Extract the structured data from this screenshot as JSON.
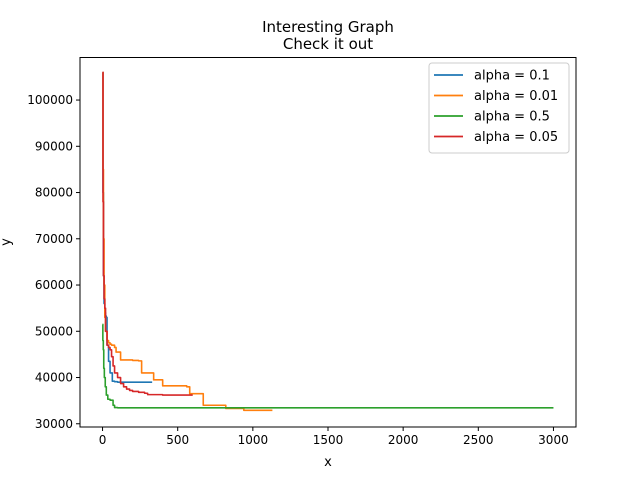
{
  "chart_data": {
    "type": "line",
    "title": "Interesting Graph",
    "subtitle": "Check it out",
    "xlabel": "x",
    "ylabel": "y",
    "xlim": [
      -150,
      3150
    ],
    "ylim": [
      29300,
      109200
    ],
    "xticks": [
      0,
      500,
      1000,
      1500,
      2000,
      2500,
      3000
    ],
    "yticks": [
      30000,
      40000,
      50000,
      60000,
      70000,
      80000,
      90000,
      100000
    ],
    "grid": false,
    "legend_position": "top-right",
    "series": [
      {
        "name": "alpha = 0.1",
        "color": "#1f77b4",
        "x": [
          0,
          3,
          6,
          10,
          15,
          20,
          25,
          30,
          40,
          45,
          50,
          60,
          65,
          80,
          100,
          150,
          200,
          250,
          300,
          330
        ],
        "y": [
          106000,
          80000,
          62000,
          56000,
          54000,
          53300,
          53000,
          47000,
          43500,
          43500,
          41000,
          41000,
          39200,
          39100,
          39000,
          39000,
          39000,
          39000,
          39000,
          39000
        ]
      },
      {
        "name": "alpha = 0.01",
        "color": "#ff7f0e",
        "x": [
          0,
          3,
          6,
          10,
          15,
          20,
          30,
          40,
          50,
          60,
          80,
          90,
          100,
          120,
          140,
          200,
          240,
          260,
          300,
          340,
          400,
          500,
          560,
          580,
          600,
          660,
          670,
          700,
          800,
          820,
          900,
          940,
          1000,
          1100,
          1130
        ],
        "y": [
          106000,
          85000,
          70000,
          60000,
          53000,
          50000,
          48000,
          47500,
          47200,
          47000,
          46500,
          45500,
          45500,
          43800,
          43800,
          43700,
          43600,
          41000,
          41000,
          39500,
          38200,
          38200,
          38000,
          36500,
          36500,
          36500,
          34000,
          34000,
          34000,
          33300,
          33300,
          32900,
          32900,
          32900,
          32900
        ]
      },
      {
        "name": "alpha = 0.5",
        "color": "#2ca02c",
        "x": [
          0,
          2,
          5,
          8,
          12,
          18,
          25,
          35,
          50,
          70,
          80,
          100,
          200,
          500,
          1000,
          1500,
          2000,
          2500,
          3000
        ],
        "y": [
          51500,
          48000,
          46000,
          42000,
          40000,
          38000,
          36200,
          35300,
          35100,
          34000,
          33500,
          33450,
          33450,
          33450,
          33450,
          33450,
          33450,
          33450,
          33450
        ]
      },
      {
        "name": "alpha = 0.05",
        "color": "#d62728",
        "x": [
          0,
          3,
          6,
          10,
          15,
          20,
          30,
          40,
          50,
          60,
          70,
          80,
          100,
          120,
          140,
          160,
          180,
          200,
          240,
          280,
          300,
          350,
          400,
          450,
          500,
          550,
          600
        ],
        "y": [
          106000,
          78000,
          62000,
          57000,
          55000,
          50000,
          47000,
          46500,
          46000,
          44500,
          42500,
          41000,
          40000,
          38700,
          38000,
          37500,
          37200,
          37000,
          36800,
          36600,
          36300,
          36300,
          36200,
          36200,
          36200,
          36200,
          36200
        ]
      }
    ]
  }
}
